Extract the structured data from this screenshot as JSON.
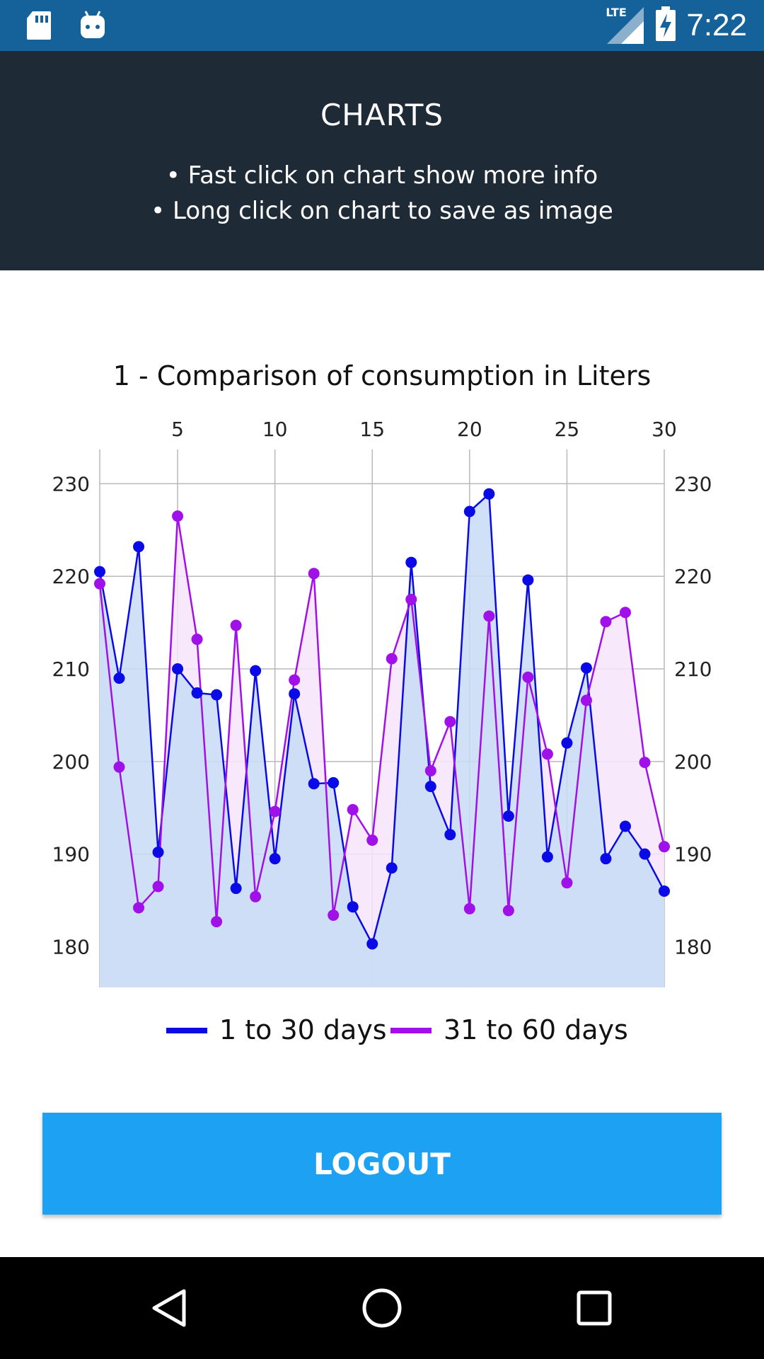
{
  "status_bar": {
    "time": "7:22",
    "network": "LTE",
    "icons": [
      "sd-card-icon",
      "android-icon",
      "lte-signal-icon",
      "battery-charging-icon"
    ]
  },
  "header": {
    "title": "CHARTS",
    "tip1": "• Fast click on chart show more info",
    "tip2": "• Long click on chart to save as image"
  },
  "chart_data": {
    "type": "line",
    "title": "1 - Comparison of consumption in Liters",
    "x": [
      1,
      2,
      3,
      4,
      5,
      6,
      7,
      8,
      9,
      10,
      11,
      12,
      13,
      14,
      15,
      16,
      17,
      18,
      19,
      20,
      21,
      22,
      23,
      24,
      25,
      26,
      27,
      28,
      29,
      30
    ],
    "x_ticks": [
      5,
      10,
      15,
      20,
      25,
      30
    ],
    "y_ticks": [
      180,
      190,
      200,
      210,
      220,
      230
    ],
    "ylim": [
      175.6,
      233.7
    ],
    "xlim": [
      1,
      30
    ],
    "grid": true,
    "fill": true,
    "series": [
      {
        "name": "1 to 30 days",
        "color": "#0a0ae6",
        "fill_color": "#c8dcf6",
        "values": [
          220.5,
          209.0,
          223.2,
          190.2,
          210.0,
          207.4,
          207.2,
          186.3,
          209.8,
          189.5,
          207.3,
          197.6,
          197.7,
          184.3,
          180.3,
          188.5,
          221.5,
          197.3,
          192.1,
          227.0,
          228.9,
          194.1,
          219.6,
          189.7,
          202.0,
          210.1,
          189.5,
          193.0,
          190.0,
          186.0
        ]
      },
      {
        "name": "31 to 60 days",
        "color": "#a010e8",
        "fill_color": "#f6e4fa",
        "values": [
          219.2,
          199.4,
          184.2,
          186.5,
          226.5,
          213.2,
          182.7,
          214.7,
          185.4,
          194.6,
          208.8,
          220.3,
          183.4,
          194.8,
          191.5,
          211.1,
          217.5,
          199.0,
          204.3,
          184.1,
          215.7,
          183.9,
          209.1,
          200.8,
          186.9,
          206.6,
          215.1,
          216.1,
          199.9,
          190.8
        ]
      }
    ],
    "legend": [
      "1 to 30 days",
      "31 to 60 days"
    ]
  },
  "logout": {
    "label": "LOGOUT"
  },
  "nav": {
    "icons": [
      "back-icon",
      "home-icon",
      "recents-icon"
    ]
  }
}
